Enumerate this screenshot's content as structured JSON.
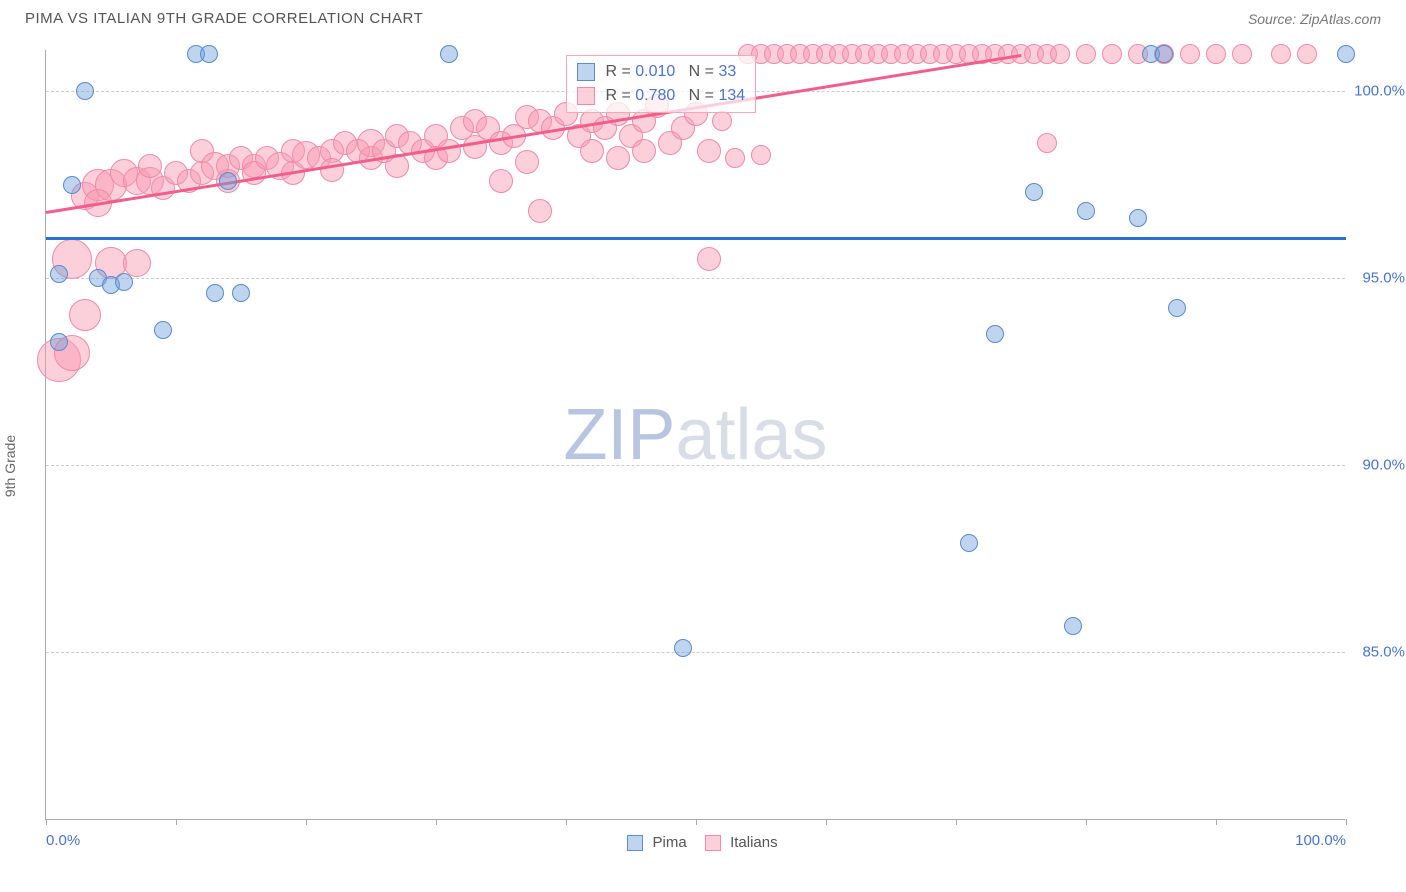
{
  "title": "PIMA VS ITALIAN 9TH GRADE CORRELATION CHART",
  "source": "Source: ZipAtlas.com",
  "ylabel": "9th Grade",
  "watermark": {
    "part1": "ZIP",
    "part2": "atlas"
  },
  "chart": {
    "type": "scatter",
    "background_color": "#ffffff",
    "grid_color": "#cccccc",
    "axis_color": "#aaaaaa",
    "xlim": [
      0,
      100
    ],
    "ylim": [
      80.5,
      101.1
    ],
    "xtick_positions": [
      0,
      10,
      20,
      30,
      40,
      50,
      60,
      70,
      80,
      90,
      100
    ],
    "xtick_labels": {
      "0": "0.0%",
      "100": "100.0%"
    },
    "ytick_positions": [
      85,
      90,
      95,
      100
    ],
    "ytick_labels": {
      "85": "85.0%",
      "90": "90.0%",
      "95": "95.0%",
      "100": "100.0%"
    },
    "label_color": "#4a74c9",
    "label_fontsize": 15
  },
  "series": {
    "pima": {
      "label": "Pima",
      "fill": "rgba(110,160,220,0.45)",
      "stroke": "#5b8bd0",
      "trend_color": "#2a71d0",
      "trend_width": 3,
      "trend": {
        "x1": 0,
        "y1": 96.1,
        "x2": 100,
        "y2": 96.1
      },
      "legend": {
        "R": "0.010",
        "N": "33"
      },
      "points": [
        {
          "x": 3,
          "y": 100.0,
          "r": 9
        },
        {
          "x": 11.5,
          "y": 101.0,
          "r": 9
        },
        {
          "x": 12.5,
          "y": 101.0,
          "r": 9
        },
        {
          "x": 31,
          "y": 101.0,
          "r": 9
        },
        {
          "x": 85,
          "y": 101.0,
          "r": 9
        },
        {
          "x": 86,
          "y": 101.0,
          "r": 9
        },
        {
          "x": 100,
          "y": 101.0,
          "r": 9
        },
        {
          "x": 2,
          "y": 97.5,
          "r": 9
        },
        {
          "x": 14,
          "y": 97.6,
          "r": 9
        },
        {
          "x": 76,
          "y": 97.3,
          "r": 9
        },
        {
          "x": 80,
          "y": 96.8,
          "r": 9
        },
        {
          "x": 84,
          "y": 96.6,
          "r": 9
        },
        {
          "x": 87,
          "y": 94.2,
          "r": 9
        },
        {
          "x": 1,
          "y": 95.1,
          "r": 9
        },
        {
          "x": 4,
          "y": 95.0,
          "r": 9
        },
        {
          "x": 5,
          "y": 94.8,
          "r": 9
        },
        {
          "x": 6,
          "y": 94.9,
          "r": 9
        },
        {
          "x": 13,
          "y": 94.6,
          "r": 9
        },
        {
          "x": 15,
          "y": 94.6,
          "r": 9
        },
        {
          "x": 9,
          "y": 93.6,
          "r": 9
        },
        {
          "x": 73,
          "y": 93.5,
          "r": 9
        },
        {
          "x": 1,
          "y": 93.3,
          "r": 9
        },
        {
          "x": 71,
          "y": 87.9,
          "r": 9
        },
        {
          "x": 79,
          "y": 85.7,
          "r": 9
        },
        {
          "x": 49,
          "y": 85.1,
          "r": 9
        }
      ]
    },
    "italians": {
      "label": "Italians",
      "fill": "rgba(248,150,175,0.45)",
      "stroke": "#f08aa8",
      "trend_color": "#f25e8c",
      "trend_width": 3,
      "trend": {
        "x1": 0,
        "y1": 96.8,
        "x2": 75,
        "y2": 101.0
      },
      "legend": {
        "R": "0.780",
        "N": "134"
      },
      "points": [
        {
          "x": 1,
          "y": 92.8,
          "r": 22
        },
        {
          "x": 2,
          "y": 93.0,
          "r": 18
        },
        {
          "x": 3,
          "y": 94.0,
          "r": 16
        },
        {
          "x": 2,
          "y": 95.5,
          "r": 20
        },
        {
          "x": 5,
          "y": 95.4,
          "r": 16
        },
        {
          "x": 7,
          "y": 95.4,
          "r": 14
        },
        {
          "x": 3,
          "y": 97.2,
          "r": 14
        },
        {
          "x": 4,
          "y": 97.5,
          "r": 16
        },
        {
          "x": 5,
          "y": 97.5,
          "r": 16
        },
        {
          "x": 4,
          "y": 97.0,
          "r": 14
        },
        {
          "x": 6,
          "y": 97.8,
          "r": 14
        },
        {
          "x": 7,
          "y": 97.6,
          "r": 14
        },
        {
          "x": 8,
          "y": 97.6,
          "r": 14
        },
        {
          "x": 8,
          "y": 98.0,
          "r": 12
        },
        {
          "x": 9,
          "y": 97.4,
          "r": 12
        },
        {
          "x": 10,
          "y": 97.8,
          "r": 12
        },
        {
          "x": 11,
          "y": 97.6,
          "r": 12
        },
        {
          "x": 12,
          "y": 97.8,
          "r": 12
        },
        {
          "x": 12,
          "y": 98.4,
          "r": 12
        },
        {
          "x": 13,
          "y": 98.0,
          "r": 14
        },
        {
          "x": 14,
          "y": 98.0,
          "r": 12
        },
        {
          "x": 14,
          "y": 97.6,
          "r": 12
        },
        {
          "x": 15,
          "y": 98.2,
          "r": 12
        },
        {
          "x": 16,
          "y": 98.0,
          "r": 12
        },
        {
          "x": 16,
          "y": 97.8,
          "r": 12
        },
        {
          "x": 17,
          "y": 98.2,
          "r": 12
        },
        {
          "x": 18,
          "y": 98.0,
          "r": 14
        },
        {
          "x": 19,
          "y": 98.4,
          "r": 12
        },
        {
          "x": 19,
          "y": 97.8,
          "r": 12
        },
        {
          "x": 20,
          "y": 98.3,
          "r": 14
        },
        {
          "x": 21,
          "y": 98.2,
          "r": 12
        },
        {
          "x": 22,
          "y": 98.4,
          "r": 12
        },
        {
          "x": 22,
          "y": 97.9,
          "r": 12
        },
        {
          "x": 23,
          "y": 98.6,
          "r": 12
        },
        {
          "x": 24,
          "y": 98.4,
          "r": 12
        },
        {
          "x": 25,
          "y": 98.2,
          "r": 12
        },
        {
          "x": 25,
          "y": 98.6,
          "r": 14
        },
        {
          "x": 26,
          "y": 98.4,
          "r": 12
        },
        {
          "x": 27,
          "y": 98.8,
          "r": 12
        },
        {
          "x": 27,
          "y": 98.0,
          "r": 12
        },
        {
          "x": 28,
          "y": 98.6,
          "r": 12
        },
        {
          "x": 29,
          "y": 98.4,
          "r": 12
        },
        {
          "x": 30,
          "y": 98.8,
          "r": 12
        },
        {
          "x": 30,
          "y": 98.2,
          "r": 12
        },
        {
          "x": 31,
          "y": 98.4,
          "r": 12
        },
        {
          "x": 32,
          "y": 99.0,
          "r": 12
        },
        {
          "x": 33,
          "y": 99.2,
          "r": 12
        },
        {
          "x": 33,
          "y": 98.5,
          "r": 12
        },
        {
          "x": 34,
          "y": 99.0,
          "r": 12
        },
        {
          "x": 35,
          "y": 98.6,
          "r": 12
        },
        {
          "x": 35,
          "y": 97.6,
          "r": 12
        },
        {
          "x": 36,
          "y": 98.8,
          "r": 12
        },
        {
          "x": 37,
          "y": 98.1,
          "r": 12
        },
        {
          "x": 37,
          "y": 99.3,
          "r": 12
        },
        {
          "x": 38,
          "y": 99.2,
          "r": 12
        },
        {
          "x": 38,
          "y": 96.8,
          "r": 12
        },
        {
          "x": 39,
          "y": 99.0,
          "r": 12
        },
        {
          "x": 40,
          "y": 99.4,
          "r": 12
        },
        {
          "x": 41,
          "y": 98.8,
          "r": 12
        },
        {
          "x": 42,
          "y": 99.2,
          "r": 12
        },
        {
          "x": 42,
          "y": 98.4,
          "r": 12
        },
        {
          "x": 43,
          "y": 99.0,
          "r": 12
        },
        {
          "x": 44,
          "y": 99.4,
          "r": 12
        },
        {
          "x": 44,
          "y": 98.2,
          "r": 12
        },
        {
          "x": 45,
          "y": 98.8,
          "r": 12
        },
        {
          "x": 46,
          "y": 99.2,
          "r": 12
        },
        {
          "x": 46,
          "y": 98.4,
          "r": 12
        },
        {
          "x": 47,
          "y": 99.6,
          "r": 12
        },
        {
          "x": 48,
          "y": 98.6,
          "r": 12
        },
        {
          "x": 49,
          "y": 99.0,
          "r": 12
        },
        {
          "x": 50,
          "y": 99.4,
          "r": 12
        },
        {
          "x": 51,
          "y": 98.4,
          "r": 12
        },
        {
          "x": 51,
          "y": 95.5,
          "r": 12
        },
        {
          "x": 52,
          "y": 99.2,
          "r": 10
        },
        {
          "x": 53,
          "y": 98.2,
          "r": 10
        },
        {
          "x": 54,
          "y": 101.0,
          "r": 10
        },
        {
          "x": 55,
          "y": 98.3,
          "r": 10
        },
        {
          "x": 55,
          "y": 101.0,
          "r": 10
        },
        {
          "x": 56,
          "y": 101.0,
          "r": 10
        },
        {
          "x": 57,
          "y": 101.0,
          "r": 10
        },
        {
          "x": 58,
          "y": 101.0,
          "r": 10
        },
        {
          "x": 59,
          "y": 101.0,
          "r": 10
        },
        {
          "x": 60,
          "y": 101.0,
          "r": 10
        },
        {
          "x": 61,
          "y": 101.0,
          "r": 10
        },
        {
          "x": 62,
          "y": 101.0,
          "r": 10
        },
        {
          "x": 63,
          "y": 101.0,
          "r": 10
        },
        {
          "x": 64,
          "y": 101.0,
          "r": 10
        },
        {
          "x": 65,
          "y": 101.0,
          "r": 10
        },
        {
          "x": 66,
          "y": 101.0,
          "r": 10
        },
        {
          "x": 67,
          "y": 101.0,
          "r": 10
        },
        {
          "x": 68,
          "y": 101.0,
          "r": 10
        },
        {
          "x": 69,
          "y": 101.0,
          "r": 10
        },
        {
          "x": 70,
          "y": 101.0,
          "r": 10
        },
        {
          "x": 71,
          "y": 101.0,
          "r": 10
        },
        {
          "x": 72,
          "y": 101.0,
          "r": 10
        },
        {
          "x": 73,
          "y": 101.0,
          "r": 10
        },
        {
          "x": 74,
          "y": 101.0,
          "r": 10
        },
        {
          "x": 75,
          "y": 101.0,
          "r": 10
        },
        {
          "x": 76,
          "y": 101.0,
          "r": 10
        },
        {
          "x": 77,
          "y": 101.0,
          "r": 10
        },
        {
          "x": 78,
          "y": 101.0,
          "r": 10
        },
        {
          "x": 80,
          "y": 101.0,
          "r": 10
        },
        {
          "x": 82,
          "y": 101.0,
          "r": 10
        },
        {
          "x": 84,
          "y": 101.0,
          "r": 10
        },
        {
          "x": 86,
          "y": 101.0,
          "r": 10
        },
        {
          "x": 88,
          "y": 101.0,
          "r": 10
        },
        {
          "x": 90,
          "y": 101.0,
          "r": 10
        },
        {
          "x": 92,
          "y": 101.0,
          "r": 10
        },
        {
          "x": 95,
          "y": 101.0,
          "r": 10
        },
        {
          "x": 97,
          "y": 101.0,
          "r": 10
        },
        {
          "x": 77,
          "y": 98.6,
          "r": 10
        }
      ]
    }
  },
  "legend_box": {
    "row1": {
      "R_label": "R =",
      "R_val": "0.010",
      "N_label": "N =",
      "N_val": "  33"
    },
    "row2": {
      "R_label": "R =",
      "R_val": "0.780",
      "N_label": "N =",
      "N_val": "134"
    }
  }
}
